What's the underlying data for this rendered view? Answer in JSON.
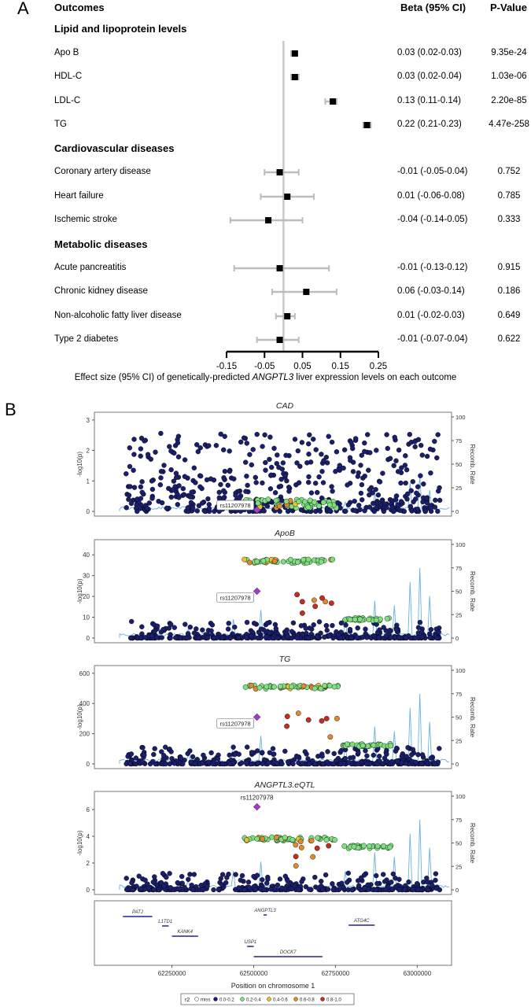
{
  "panel_a": {
    "letter": "A",
    "headers": {
      "outcomes": "Outcomes",
      "beta": "Beta (95% CI)",
      "pvalue": "P-Value"
    },
    "x_axis_label_pre": "Effect size (95% CI) of genetically-predicted ",
    "x_axis_label_gene": "ANGPTL3",
    "x_axis_label_post": " liver expression levels on each outcome",
    "sections": [
      {
        "title": "Lipid and lipoprotein levels",
        "rows": [
          {
            "label": "Apo B",
            "beta": 0.03,
            "lo": 0.02,
            "hi": 0.03,
            "beta_text": "0.03 (0.02-0.03)",
            "p": "9.35e-24"
          },
          {
            "label": "HDL-C",
            "beta": 0.03,
            "lo": 0.02,
            "hi": 0.04,
            "beta_text": "0.03 (0.02-0.04)",
            "p": "1.03e-06"
          },
          {
            "label": "LDL-C",
            "beta": 0.13,
            "lo": 0.11,
            "hi": 0.14,
            "beta_text": "0.13 (0.11-0.14)",
            "p": "2.20e-85"
          },
          {
            "label": "TG",
            "beta": 0.22,
            "lo": 0.21,
            "hi": 0.23,
            "beta_text": "0.22 (0.21-0.23)",
            "p": "4.47e-258"
          }
        ]
      },
      {
        "title": "Cardiovascular diseases",
        "rows": [
          {
            "label": "Coronary artery disease",
            "beta": -0.01,
            "lo": -0.05,
            "hi": 0.04,
            "beta_text": "-0.01 (-0.05-0.04)",
            "p": "0.752"
          },
          {
            "label": "Heart failure",
            "beta": 0.01,
            "lo": -0.06,
            "hi": 0.08,
            "beta_text": "0.01 (-0.06-0.08)",
            "p": "0.785"
          },
          {
            "label": "Ischemic stroke",
            "beta": -0.04,
            "lo": -0.14,
            "hi": 0.05,
            "beta_text": "-0.04 (-0.14-0.05)",
            "p": "0.333"
          }
        ]
      },
      {
        "title": "Metabolic diseases",
        "rows": [
          {
            "label": "Acute pancreatitis",
            "beta": -0.01,
            "lo": -0.13,
            "hi": 0.12,
            "beta_text": "-0.01 (-0.13-0.12)",
            "p": "0.915"
          },
          {
            "label": "Chronic kidney disease",
            "beta": 0.06,
            "lo": -0.03,
            "hi": 0.14,
            "beta_text": "0.06 (-0.03-0.14)",
            "p": "0.186"
          },
          {
            "label": "Non-alcoholic fatty liver disease",
            "beta": 0.01,
            "lo": -0.02,
            "hi": 0.03,
            "beta_text": "0.01 (-0.02-0.03)",
            "p": "0.649"
          },
          {
            "label": "Type 2 diabetes",
            "beta": -0.01,
            "lo": -0.07,
            "hi": 0.04,
            "beta_text": "-0.01 (-0.07-0.04)",
            "p": "0.622"
          }
        ]
      }
    ],
    "x_ticks": [
      "-0.15",
      "-0.05",
      "0.05",
      "0.15",
      "0.25"
    ]
  },
  "panel_b": {
    "letter": "B",
    "ylabel": "-log10(p)",
    "right_label": "Recomb. Rate",
    "lead_snp": "rs11207978",
    "plots": [
      {
        "title": "CAD",
        "yticks": [
          "0",
          "1",
          "2",
          "3"
        ],
        "ymax": 3.1
      },
      {
        "title": "ApoB",
        "yticks": [
          "0",
          "10",
          "20",
          "30",
          "40"
        ],
        "ymax": 45
      },
      {
        "title": "TG",
        "yticks": [
          "0",
          "200",
          "400",
          "600"
        ],
        "ymax": 620
      },
      {
        "title": "ANGPTL3.eQTL",
        "yticks": [
          "0",
          "2",
          "4",
          "6"
        ],
        "ymax": 7
      }
    ],
    "rr_ticks": [
      "0",
      "25",
      "50",
      "75",
      "100"
    ],
    "genes": [
      "PATJ",
      "L1TD1",
      "KANK4",
      "ANGPTL3",
      "USP1",
      "DOCK7",
      "ATG4C"
    ],
    "x_ticks": [
      "62250000",
      "62500000",
      "62750000",
      "63000000"
    ],
    "xlabel": "Position on chromosome 1",
    "legend": {
      "title": "r2",
      "items": [
        "miss",
        "0.0-0.2",
        "0.2-0.4",
        "0.4-0.6",
        "0.6-0.8",
        "0.8-1.0"
      ],
      "colors": [
        "#ffffff",
        "#1a1f6b",
        "#7fe07f",
        "#e8c030",
        "#e08a30",
        "#c03020"
      ]
    },
    "colors": {
      "recomb": "#6ab0e0",
      "lead": "#a040c0"
    }
  }
}
